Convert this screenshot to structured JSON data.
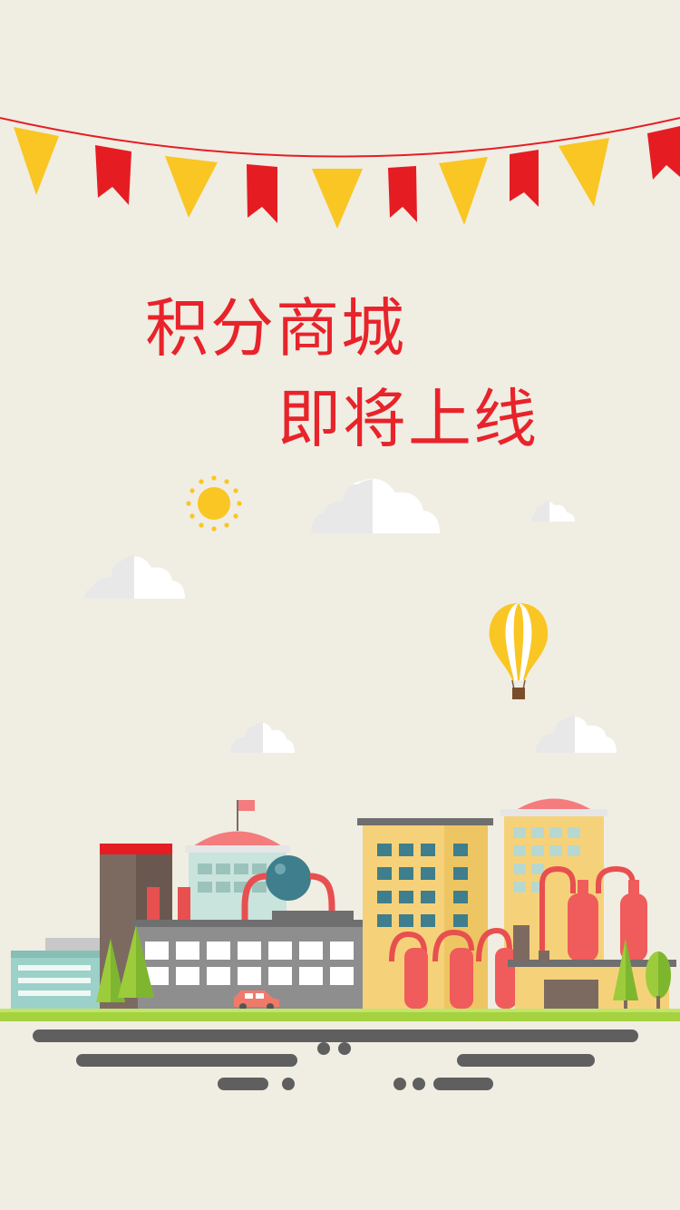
{
  "splash": {
    "headline_line1": "积分商城",
    "headline_line2": "即将上线"
  },
  "colors": {
    "background": "#f0ede3",
    "headline_text": "#e8232a",
    "flag_red": "#e51d23",
    "flag_yellow": "#f9c623",
    "grass": "#a5d23f",
    "road": "#5f5f5f"
  },
  "icons": {
    "bunting": "bunting-flags-icon",
    "sun": "sun-icon",
    "balloon": "hot-air-balloon-icon",
    "clouds": "cloud-icon",
    "city": "city-skyline-illustration",
    "car": "car-icon"
  }
}
